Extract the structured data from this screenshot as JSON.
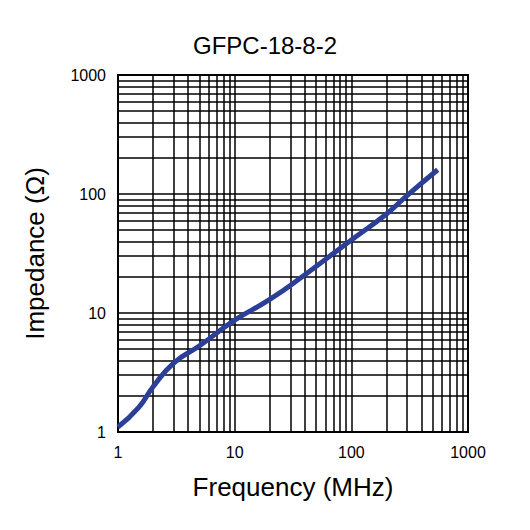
{
  "chart_data": {
    "type": "line",
    "title": "GFPC-18-8-2",
    "x_label": "Frequency (MHz)",
    "y_label": "Impedance (Ω)",
    "x": [
      1,
      1.5,
      2,
      3,
      5,
      10,
      20,
      40,
      100,
      200,
      300,
      550
    ],
    "series": [
      {
        "name": "GFPC-18-8-2",
        "color": "#2b3f99",
        "values": [
          1.1,
          1.6,
          2.4,
          3.8,
          5.3,
          8.7,
          13,
          21,
          41,
          68,
          97,
          160
        ]
      }
    ],
    "xlim": [
      1,
      1000
    ],
    "xticks": [
      1,
      10,
      100,
      1000
    ],
    "ylim": [
      1,
      1000
    ],
    "yticks": [
      1,
      10,
      100,
      1000
    ],
    "log": true,
    "grid": true
  }
}
